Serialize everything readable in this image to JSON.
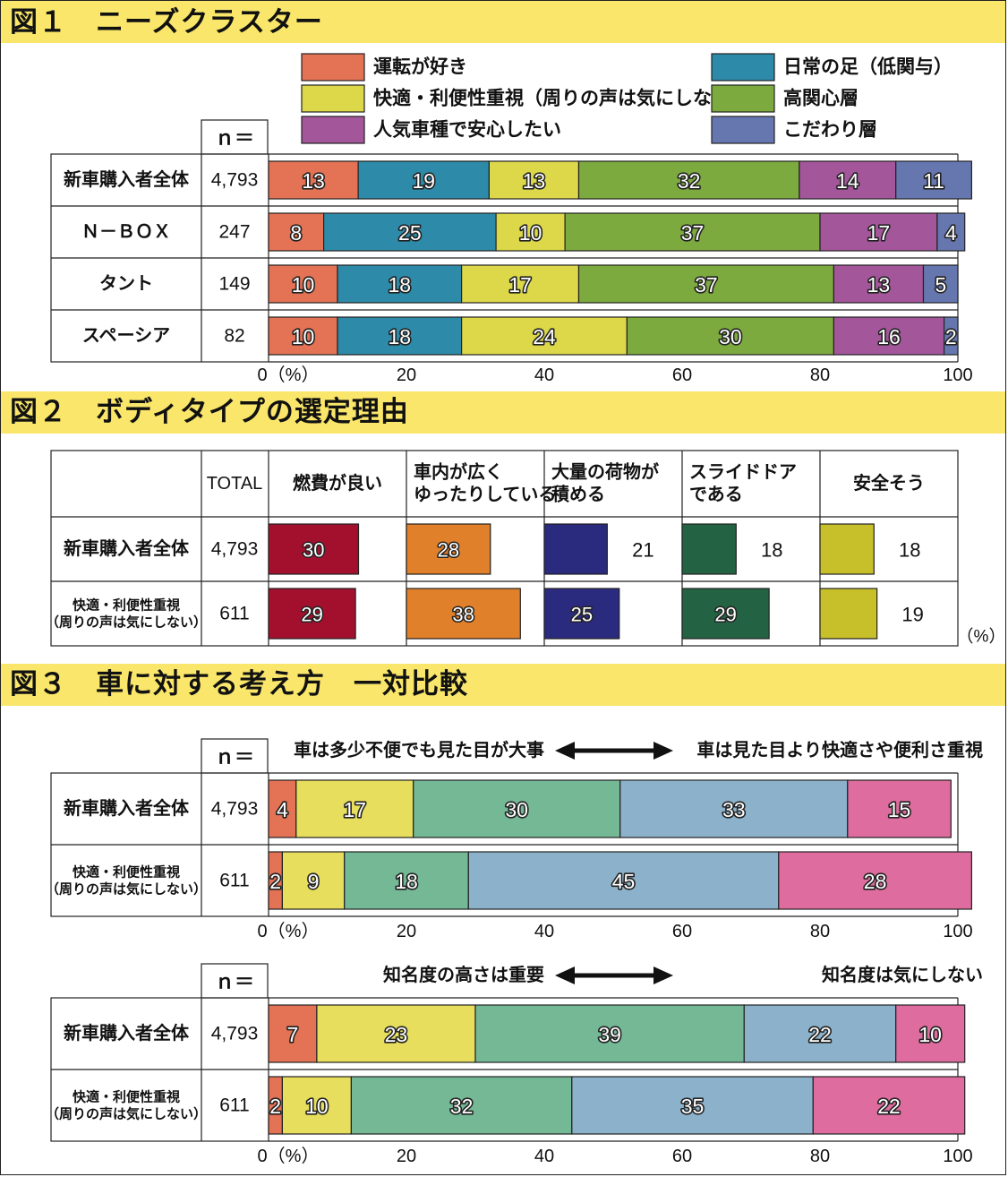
{
  "fig1": {
    "title": "図１　ニーズクラスター",
    "legend": [
      {
        "label": "運転が好き",
        "color": "#e47254"
      },
      {
        "label": "日常の足（低関与）",
        "color": "#2d8aa8"
      },
      {
        "label": "快適・利便性重視（周りの声は気にしない）",
        "color": "#dcd84a"
      },
      {
        "label": "高関心層",
        "color": "#7daa3f"
      },
      {
        "label": "人気車種で安心したい",
        "color": "#a4569a"
      },
      {
        "label": "こだわり層",
        "color": "#6677b0"
      }
    ],
    "n_header": "ｎ＝",
    "tick_labels": [
      "0（%）",
      "20",
      "40",
      "60",
      "80",
      "100"
    ],
    "chart_data": {
      "type": "bar",
      "orientation": "horizontal-stacked-100",
      "categories": [
        "新車購入者全体",
        "Ｎ－ＢＯＸ",
        "タント",
        "スペーシア"
      ],
      "n_values": [
        "4,793",
        "247",
        "149",
        "82"
      ],
      "series": [
        {
          "name": "運転が好き",
          "values": [
            13,
            8,
            10,
            10
          ]
        },
        {
          "name": "日常の足（低関与）",
          "values": [
            19,
            25,
            18,
            18
          ]
        },
        {
          "name": "快適・利便性重視（周りの声は気にしない）",
          "values": [
            13,
            10,
            17,
            24
          ]
        },
        {
          "name": "高関心層",
          "values": [
            32,
            37,
            37,
            30
          ]
        },
        {
          "name": "人気車種で安心したい",
          "values": [
            14,
            17,
            13,
            16
          ]
        },
        {
          "name": "こだわり層",
          "values": [
            11,
            4,
            5,
            2
          ]
        }
      ],
      "xlim": [
        0,
        100
      ],
      "xlabel": "%"
    }
  },
  "fig2": {
    "title": "図２　ボディタイプの選定理由",
    "total_header": "TOTAL",
    "unit": "（%）",
    "chart_data": {
      "type": "table",
      "columns": [
        {
          "label": "燃費が良い",
          "color": "#a3102e"
        },
        {
          "label": "車内が広く\nゆったりしている",
          "color": "#e0802a"
        },
        {
          "label": "大量の荷物が\n積める",
          "color": "#2a2a7e"
        },
        {
          "label": "スライドドア\nである",
          "color": "#236343"
        },
        {
          "label": "安全そう",
          "color": "#c8c02a"
        }
      ],
      "rows": [
        {
          "label": "新車購入者全体",
          "n": "4,793",
          "values": [
            30,
            28,
            21,
            18,
            18
          ]
        },
        {
          "label": "快適・利便性重視\n（周りの声は気にしない）",
          "n": "611",
          "values": [
            29,
            38,
            25,
            29,
            19
          ]
        }
      ],
      "scale_max": 40
    }
  },
  "fig3": {
    "title": "図３　車に対する考え方　一対比較",
    "colors": [
      "#e47254",
      "#e6de5c",
      "#74b896",
      "#8cb2cb",
      "#de6c9e"
    ],
    "tick_labels": [
      "0（%）",
      "20",
      "40",
      "60",
      "80",
      "100"
    ],
    "n_header": "ｎ＝",
    "chart_data": [
      {
        "type": "bar",
        "orientation": "horizontal-stacked-100",
        "left_statement": "車は多少不便でも見た目が大事",
        "right_statement": "車は見た目より快適さや便利さ重視",
        "categories": [
          "新車購入者全体",
          "快適・利便性重視\n（周りの声は気にしない）"
        ],
        "n_values": [
          "4,793",
          "611"
        ],
        "values": [
          [
            4,
            17,
            30,
            33,
            15
          ],
          [
            2,
            9,
            18,
            45,
            28
          ]
        ],
        "xlim": [
          0,
          100
        ]
      },
      {
        "type": "bar",
        "orientation": "horizontal-stacked-100",
        "left_statement": "知名度の高さは重要",
        "right_statement": "知名度は気にしない",
        "categories": [
          "新車購入者全体",
          "快適・利便性重視\n（周りの声は気にしない）"
        ],
        "n_values": [
          "4,793",
          "611"
        ],
        "values": [
          [
            7,
            23,
            39,
            22,
            10
          ],
          [
            2,
            10,
            32,
            35,
            22
          ]
        ],
        "xlim": [
          0,
          100
        ]
      }
    ]
  }
}
